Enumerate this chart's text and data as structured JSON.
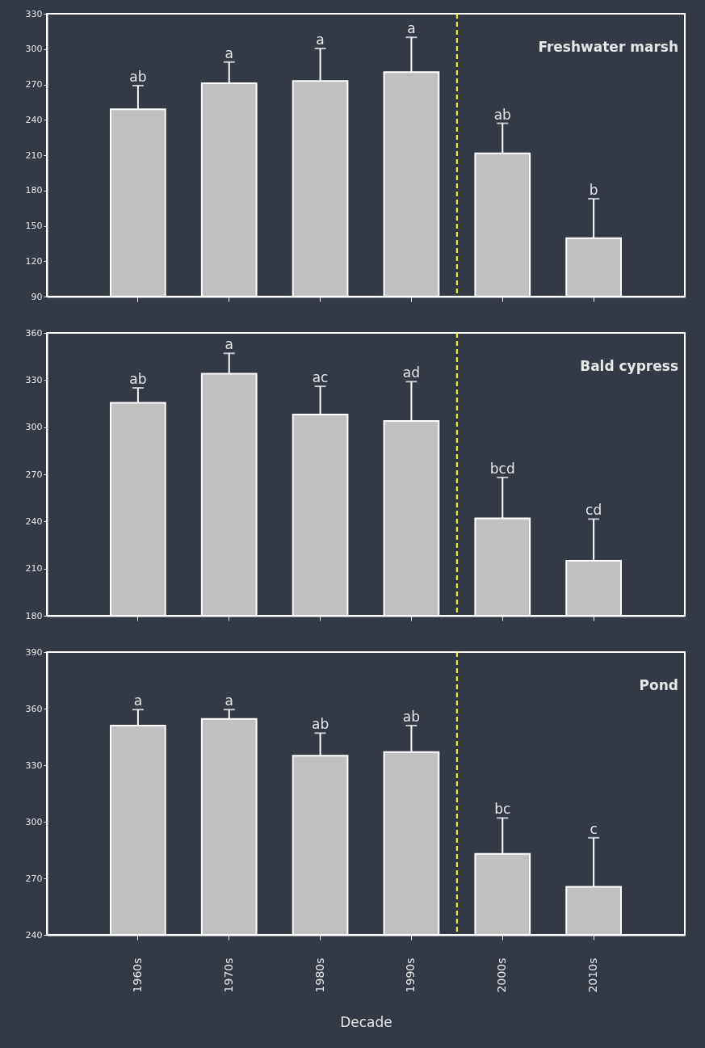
{
  "chart_data": [
    {
      "type": "bar",
      "title": "Freshwater marsh",
      "categories": [
        "1960s",
        "1970s",
        "1980s",
        "1990s",
        "2000s",
        "2010s"
      ],
      "tick_labels": "y",
      "grid": false,
      "series": [
        {
          "color": "#c0c0c0",
          "values": [
            249,
            271,
            273,
            280.5,
            211.5,
            139.5
          ],
          "errors": [
            [
              249,
              269
            ],
            [
              271,
              289
            ],
            [
              273,
              300.5
            ],
            [
              280.5,
              310
            ],
            [
              211.5,
              237
            ],
            [
              139.5,
              173
            ]
          ]
        }
      ],
      "ylim": [
        90,
        330
      ],
      "yticks": [
        90,
        120,
        150,
        180,
        210,
        240,
        270,
        300,
        330
      ],
      "annotations": [
        {
          "text": "ab",
          "x": "1960s",
          "y": 269
        },
        {
          "text": "a",
          "x": "1970s",
          "y": 289
        },
        {
          "text": "a",
          "x": "1980s",
          "y": 300.5
        },
        {
          "text": "a",
          "x": "1990s",
          "y": 310
        },
        {
          "text": "ab",
          "x": "2000s",
          "y": 237
        },
        {
          "text": "b",
          "x": "2010s",
          "y": 173
        }
      ],
      "ref_lines": [
        {
          "axis": "x",
          "value": "2000s",
          "color": "#ffff00",
          "line_style": "dashed"
        }
      ]
    },
    {
      "type": "bar",
      "title": "Bald cypress",
      "categories": [
        "1960s",
        "1970s",
        "1980s",
        "1990s",
        "2000s",
        "2010s"
      ],
      "tick_labels": "y",
      "grid": false,
      "series": [
        {
          "color": "#c0c0c0",
          "values": [
            315.5,
            334,
            308,
            304,
            242,
            215
          ],
          "errors": [
            [
              315.5,
              325
            ],
            [
              334,
              347
            ],
            [
              308,
              326
            ],
            [
              304,
              329
            ],
            [
              242,
              268
            ],
            [
              215,
              241.5
            ]
          ]
        }
      ],
      "ylim": [
        180,
        360
      ],
      "yticks": [
        180,
        210,
        240,
        270,
        300,
        330,
        360
      ],
      "annotations": [
        {
          "text": "ab",
          "x": "1960s",
          "y": 325
        },
        {
          "text": "a",
          "x": "1970s",
          "y": 347
        },
        {
          "text": "ac",
          "x": "1980s",
          "y": 326
        },
        {
          "text": "ad",
          "x": "1990s",
          "y": 329
        },
        {
          "text": "bcd",
          "x": "2000s",
          "y": 268
        },
        {
          "text": "cd",
          "x": "2010s",
          "y": 241.5
        }
      ],
      "ref_lines": [
        {
          "axis": "x",
          "value": "2000s",
          "color": "#ffff00",
          "line_style": "dashed"
        }
      ]
    },
    {
      "type": "bar",
      "title": "Pond",
      "xlabel": "Decade",
      "categories": [
        "1960s",
        "1970s",
        "1980s",
        "1990s",
        "2000s",
        "2010s"
      ],
      "grid": false,
      "series": [
        {
          "color": "#c0c0c0",
          "values": [
            351,
            354.5,
            335,
            337,
            283,
            265.5
          ],
          "errors": [
            [
              351,
              359.5
            ],
            [
              354.5,
              359.5
            ],
            [
              335,
              347
            ],
            [
              337,
              351
            ],
            [
              283,
              302
            ],
            [
              265.5,
              291.5
            ]
          ]
        }
      ],
      "ylim": [
        240,
        390
      ],
      "yticks": [
        240,
        270,
        300,
        330,
        360,
        390
      ],
      "annotations": [
        {
          "text": "a",
          "x": "1960s",
          "y": 359.5
        },
        {
          "text": "a",
          "x": "1970s",
          "y": 359.5
        },
        {
          "text": "ab",
          "x": "1980s",
          "y": 347
        },
        {
          "text": "ab",
          "x": "1990s",
          "y": 351
        },
        {
          "text": "bc",
          "x": "2000s",
          "y": 302
        },
        {
          "text": "c",
          "x": "2010s",
          "y": 291.5
        }
      ],
      "ref_lines": [
        {
          "axis": "x",
          "value": "2000s",
          "color": "#ffff00",
          "line_style": "dashed"
        }
      ]
    }
  ]
}
